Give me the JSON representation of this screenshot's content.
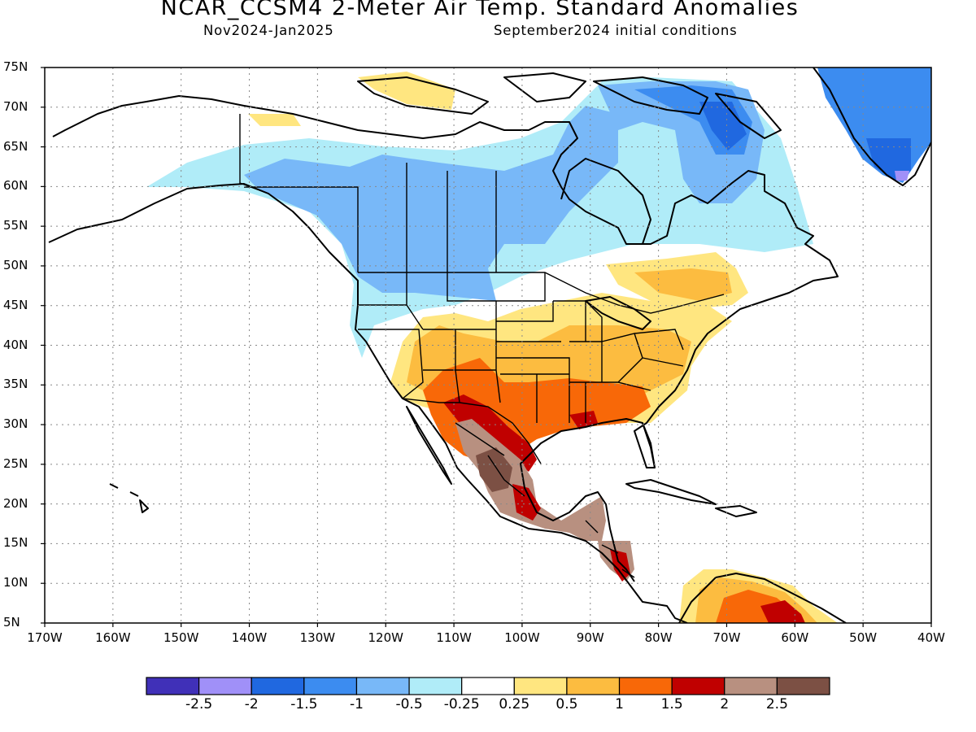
{
  "title": "NCAR_CCSM4 2-Meter Air Temp. Standard Anomalies",
  "subtitle_left": "Nov2024-Jan2025",
  "subtitle_right": "September2024 initial conditions",
  "map": {
    "lat_labels": [
      "75N",
      "70N",
      "65N",
      "60N",
      "55N",
      "50N",
      "45N",
      "40N",
      "35N",
      "30N",
      "25N",
      "20N",
      "15N",
      "10N",
      "5N"
    ],
    "lon_labels": [
      "170W",
      "160W",
      "150W",
      "140W",
      "130W",
      "120W",
      "110W",
      "100W",
      "90W",
      "80W",
      "70W",
      "60W",
      "50W",
      "40W"
    ],
    "lat_range": [
      5,
      75
    ],
    "lon_range": [
      -170,
      -40
    ],
    "grid": "dotted",
    "regions": [
      {
        "name": "northwest-cold-anomaly",
        "level": "-1"
      },
      {
        "name": "arctic-canada-cold-anomaly",
        "level": "-1.5"
      },
      {
        "name": "greenland-cold-anomaly",
        "level": "-1.5"
      },
      {
        "name": "southern-us-warm-anomaly",
        "level": "1"
      },
      {
        "name": "southwest-warm-anomaly",
        "level": "1.5"
      },
      {
        "name": "mexico-warm-anomaly",
        "level": "2.5"
      },
      {
        "name": "venezuela-warm-anomaly",
        "level": "1.5"
      }
    ]
  },
  "colorbar": {
    "colors": [
      "#4030b8",
      "#a090f8",
      "#2068e0",
      "#3c8cf0",
      "#78b8f8",
      "#b0ecf8",
      "#ffffff",
      "#ffe680",
      "#fcbc40",
      "#f86808",
      "#c00000",
      "#b89080",
      "#7c5044"
    ],
    "labels": [
      "-2.5",
      "-2",
      "-1.5",
      "-1",
      "-0.5",
      "-0.25",
      "0.25",
      "0.5",
      "1",
      "1.5",
      "2",
      "2.5"
    ]
  }
}
